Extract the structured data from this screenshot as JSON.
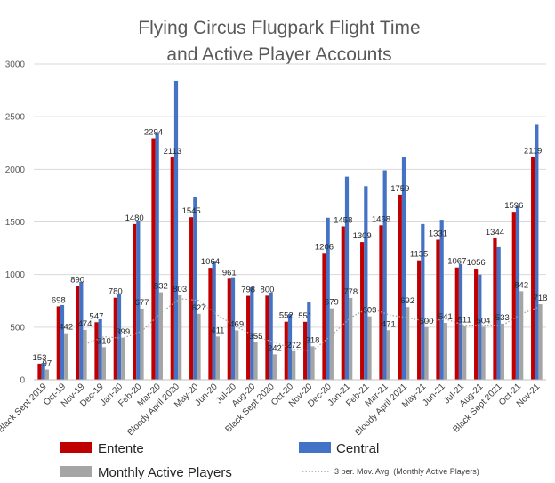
{
  "chart_data": {
    "type": "bar",
    "title_line1": "Flying Circus Flugpark Flight Time",
    "title_line2": "and Active Player Accounts",
    "ylim": [
      0,
      3000
    ],
    "yticks": [
      0,
      500,
      1000,
      1500,
      2000,
      2500,
      3000
    ],
    "categories": [
      "Black Sept 2019",
      "Oct-19",
      "Nov-19",
      "Dec-19",
      "Jan-20",
      "Feb-20",
      "Mar-20",
      "Bloody April 2020",
      "May-20",
      "Jun-20",
      "Jul-20",
      "Aug-20",
      "Black Sept 2020",
      "Oct-20",
      "Nov-20",
      "Dec-20",
      "Jan-21",
      "Feb-21",
      "Mar-21",
      "Bloody April 2021",
      "May-21",
      "Jun-21",
      "Jul-21",
      "Aug-21",
      "Black Sept 2021",
      "Oct-21",
      "Nov-21"
    ],
    "series": [
      {
        "name": "Entente",
        "color": "#c00000",
        "values": [
          153,
          698,
          890,
          547,
          780,
          1480,
          2294,
          2113,
          1545,
          1064,
          961,
          798,
          800,
          552,
          551,
          1206,
          1458,
          1309,
          1468,
          1759,
          1135,
          1331,
          1067,
          1056,
          1344,
          1596,
          2119
        ],
        "labels": [
          "153",
          "698",
          "890",
          "547",
          "780",
          "1480",
          "2294",
          "2113",
          "1545",
          "1064",
          "961",
          "798",
          "800",
          "552",
          "551",
          "1206",
          "1458",
          "1309",
          "1468",
          "1759",
          "1135",
          "1331",
          "1067",
          "1056",
          "1344",
          "1596",
          "2119"
        ]
      },
      {
        "name": "Central",
        "color": "#4472c4",
        "values": [
          160,
          710,
          930,
          575,
          815,
          1505,
          2350,
          2840,
          1740,
          1130,
          975,
          880,
          830,
          625,
          740,
          1540,
          1930,
          1840,
          1990,
          2120,
          1480,
          1520,
          1100,
          1000,
          1260,
          1650,
          2430
        ],
        "labels": []
      },
      {
        "name": "Monthly Active Players",
        "color": "#a5a5a5",
        "values": [
          97,
          442,
          474,
          310,
          399,
          677,
          832,
          803,
          627,
          411,
          469,
          355,
          242,
          272,
          318,
          679,
          778,
          603,
          471,
          692,
          500,
          541,
          511,
          504,
          533,
          842,
          718
        ],
        "labels": [
          "97",
          "442",
          "474",
          "310",
          "399",
          "677",
          "832",
          "803",
          "627",
          "411",
          "469",
          "355",
          "242",
          "272",
          "318",
          "679",
          "778",
          "603",
          "471",
          "692",
          "500",
          "541",
          "511",
          "504",
          "533",
          "842",
          "718"
        ]
      }
    ],
    "trendline": {
      "name": "3 per. Mov. Avg. (Monthly Active Players)",
      "period": 3,
      "color": "#a5a5a5",
      "style": "dotted"
    },
    "legend_position": "bottom",
    "grid": "horizontal"
  }
}
